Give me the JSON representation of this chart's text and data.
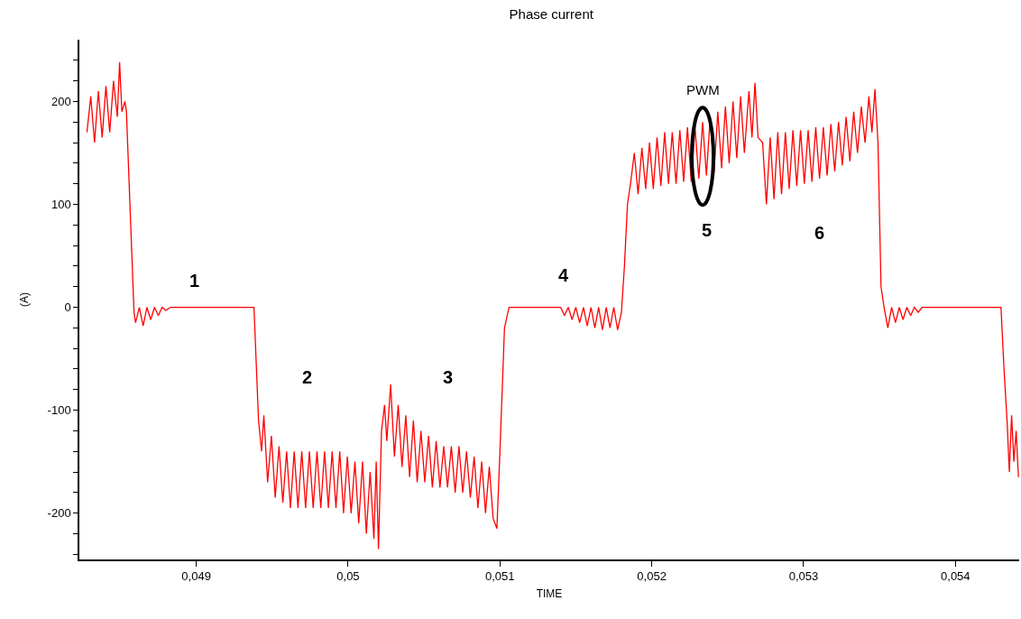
{
  "chart_data": {
    "type": "line",
    "title": "Phase current",
    "xlabel": "TIME",
    "ylabel": "(A)",
    "xlim": [
      0.04823,
      0.05442
    ],
    "ylim": [
      -245,
      260
    ],
    "xticks": [
      {
        "value": 0.049,
        "label": "0,049"
      },
      {
        "value": 0.05,
        "label": "0,05"
      },
      {
        "value": 0.051,
        "label": "0,051"
      },
      {
        "value": 0.052,
        "label": "0,052"
      },
      {
        "value": 0.053,
        "label": "0,053"
      },
      {
        "value": 0.054,
        "label": "0,054"
      }
    ],
    "yticks": [
      {
        "value": -240,
        "label": null
      },
      {
        "value": -220,
        "label": null
      },
      -200,
      {
        "value": -180,
        "label": null
      },
      {
        "value": -160,
        "label": null
      },
      {
        "value": -140,
        "label": null
      },
      {
        "value": -120,
        "label": null
      },
      -100,
      {
        "value": -80,
        "label": null
      },
      {
        "value": -60,
        "label": null
      },
      {
        "value": -40,
        "label": null
      },
      {
        "value": -20,
        "label": null
      },
      0,
      {
        "value": 20,
        "label": null
      },
      {
        "value": 40,
        "label": null
      },
      {
        "value": 60,
        "label": null
      },
      {
        "value": 80,
        "label": null
      },
      100,
      {
        "value": 120,
        "label": null
      },
      {
        "value": 140,
        "label": null
      },
      {
        "value": 160,
        "label": null
      },
      {
        "value": 180,
        "label": null
      },
      200,
      {
        "value": 220,
        "label": null
      },
      {
        "value": 240,
        "label": null
      }
    ],
    "grid": false,
    "marker": "none",
    "line_style": "solid",
    "series": [
      {
        "color": "#ff0000",
        "x": [
          0.04828,
          0.048305,
          0.04833,
          0.048355,
          0.04838,
          0.048405,
          0.04843,
          0.048455,
          0.04848,
          0.048495,
          0.04851,
          0.04853,
          0.04854,
          0.04859,
          0.0486,
          0.048625,
          0.04865,
          0.048675,
          0.0487,
          0.048725,
          0.04875,
          0.048775,
          0.0488,
          0.04883,
          0.04938,
          0.04941,
          0.04943,
          0.049445,
          0.04947,
          0.049495,
          0.04952,
          0.049545,
          0.04957,
          0.049595,
          0.04962,
          0.049645,
          0.04967,
          0.049695,
          0.04972,
          0.049745,
          0.04977,
          0.049795,
          0.04982,
          0.049845,
          0.04987,
          0.049895,
          0.04992,
          0.049945,
          0.04997,
          0.049995,
          0.05002,
          0.050045,
          0.05007,
          0.050095,
          0.05012,
          0.050145,
          0.05017,
          0.050185,
          0.0502,
          0.05022,
          0.05024,
          0.050255,
          0.05028,
          0.050305,
          0.05033,
          0.050355,
          0.05038,
          0.050405,
          0.05043,
          0.050455,
          0.05048,
          0.050505,
          0.05053,
          0.050555,
          0.05058,
          0.050605,
          0.05063,
          0.050655,
          0.05068,
          0.050705,
          0.05073,
          0.050755,
          0.05078,
          0.050805,
          0.05083,
          0.050855,
          0.05088,
          0.050905,
          0.05093,
          0.050955,
          0.05098,
          0.051,
          0.05103,
          0.05106,
          0.0514,
          0.051425,
          0.05145,
          0.051475,
          0.0515,
          0.051525,
          0.05155,
          0.051575,
          0.0516,
          0.051625,
          0.05165,
          0.051675,
          0.0517,
          0.051725,
          0.05175,
          0.051775,
          0.0518,
          0.05182,
          0.05184,
          0.05186,
          0.051885,
          0.05191,
          0.051935,
          0.05196,
          0.051985,
          0.05201,
          0.052035,
          0.05206,
          0.052085,
          0.05211,
          0.052135,
          0.05216,
          0.052185,
          0.05221,
          0.052235,
          0.05226,
          0.052285,
          0.05231,
          0.052335,
          0.05236,
          0.052385,
          0.05241,
          0.052435,
          0.05246,
          0.052485,
          0.05251,
          0.052535,
          0.05256,
          0.052585,
          0.05261,
          0.05264,
          0.05266,
          0.05268,
          0.0527,
          0.05273,
          0.052755,
          0.05278,
          0.052805,
          0.05283,
          0.052855,
          0.05288,
          0.052905,
          0.05293,
          0.052955,
          0.05298,
          0.053005,
          0.05303,
          0.053055,
          0.05308,
          0.053105,
          0.05313,
          0.053155,
          0.05318,
          0.053205,
          0.05323,
          0.053255,
          0.05328,
          0.053305,
          0.05333,
          0.053355,
          0.05338,
          0.053405,
          0.05343,
          0.05345,
          0.05347,
          0.05349,
          0.05351,
          0.05353,
          0.053555,
          0.05358,
          0.053605,
          0.05363,
          0.053655,
          0.05368,
          0.053705,
          0.05373,
          0.053755,
          0.05378,
          0.0543,
          0.05432,
          0.05434,
          0.054355,
          0.05437,
          0.054385,
          0.0544,
          0.054415
        ],
        "values": [
          170,
          205,
          160,
          210,
          165,
          215,
          170,
          220,
          185,
          238,
          190,
          200,
          190,
          -5,
          -15,
          0,
          -18,
          0,
          -12,
          0,
          -8,
          0,
          -3,
          0,
          0,
          -110,
          -140,
          -105,
          -170,
          -125,
          -185,
          -135,
          -190,
          -140,
          -195,
          -140,
          -195,
          -140,
          -195,
          -140,
          -195,
          -140,
          -195,
          -140,
          -195,
          -140,
          -195,
          -140,
          -200,
          -145,
          -200,
          -150,
          -210,
          -150,
          -220,
          -160,
          -225,
          -150,
          -235,
          -120,
          -95,
          -130,
          -75,
          -145,
          -95,
          -155,
          -105,
          -165,
          -110,
          -170,
          -120,
          -170,
          -125,
          -175,
          -130,
          -175,
          -135,
          -175,
          -135,
          -180,
          -135,
          -180,
          -140,
          -185,
          -145,
          -195,
          -150,
          -200,
          -155,
          -205,
          -215,
          -140,
          -20,
          0,
          0,
          -8,
          0,
          -12,
          0,
          -15,
          0,
          -18,
          0,
          -20,
          0,
          -22,
          0,
          -20,
          0,
          -22,
          -5,
          40,
          100,
          120,
          150,
          110,
          155,
          115,
          160,
          115,
          165,
          118,
          170,
          120,
          170,
          120,
          172,
          122,
          175,
          122,
          175,
          125,
          180,
          128,
          185,
          130,
          190,
          135,
          195,
          140,
          200,
          145,
          205,
          150,
          210,
          165,
          218,
          165,
          160,
          100,
          165,
          105,
          170,
          110,
          170,
          115,
          172,
          118,
          172,
          120,
          172,
          122,
          175,
          125,
          175,
          128,
          178,
          132,
          180,
          138,
          185,
          142,
          190,
          150,
          195,
          160,
          205,
          170,
          212,
          160,
          20,
          0,
          -20,
          0,
          -15,
          0,
          -12,
          0,
          -8,
          0,
          -5,
          0,
          0,
          -60,
          -110,
          -160,
          -105,
          -150,
          -120,
          -165
        ]
      }
    ],
    "annotations": [
      {
        "text": "1",
        "x": 0.04899,
        "y": 0
      },
      "2",
      "3",
      {
        "text": "4",
        "x": 0.05142,
        "y": 0
      },
      {
        "text": "5",
        "x": 0.05236,
        "y": 128
      },
      {
        "text": "6",
        "x": 0.053105,
        "y": 125
      },
      {
        "text": "PWM",
        "x": 0.052335,
        "y": 180
      }
    ]
  }
}
